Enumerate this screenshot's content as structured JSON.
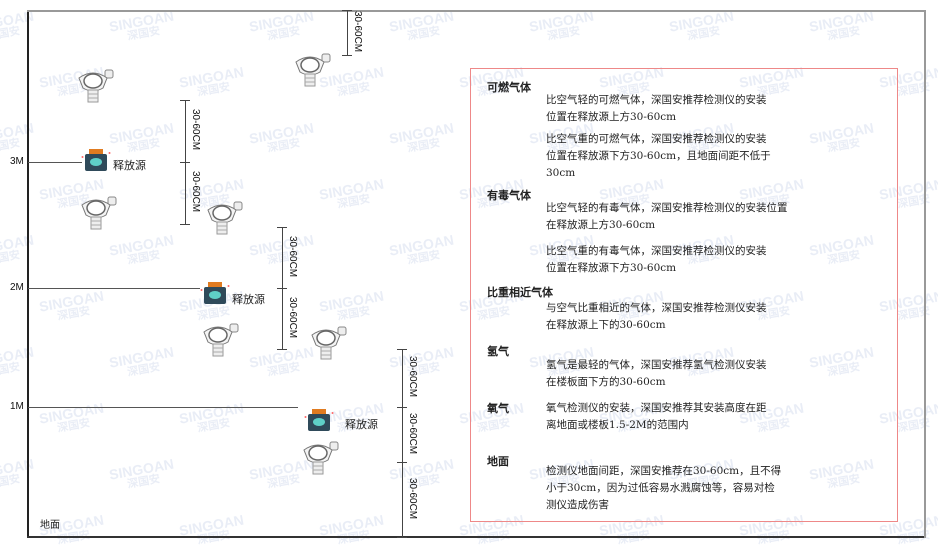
{
  "watermark": {
    "brand": "SINGOAN",
    "cn": "深国安"
  },
  "levels": [
    "3M",
    "2M",
    "1M"
  ],
  "ground_label": "地面",
  "release_source_label": "释放源",
  "dimension_label": "30-60CM",
  "colors": {
    "panel_border": "#ee8888",
    "source_body": "#2f4a5a",
    "source_cap": "#e07b20",
    "source_face": "#5fd0c8"
  },
  "panel": {
    "sections": [
      {
        "title": "可燃气体",
        "paragraphs": [
          [
            "比空气轻的可燃气体，深国安推荐检测仪的安装",
            "位置在释放源上方30-60cm"
          ],
          [
            "比空气重的可燃气体，深国安推荐检测仪的安装",
            "位置在释放源下方30-60cm，且地面间距不低于",
            "30cm"
          ]
        ]
      },
      {
        "title": "有毒气体",
        "paragraphs": [
          [
            "比空气轻的有毒气体，深国安推荐检测仪的安装位置",
            "在释放源上方30-60cm"
          ],
          [
            "比空气重的有毒气体，深国安推荐检测仪的安装",
            "位置在释放源下方30-60cm"
          ]
        ]
      },
      {
        "title": "比重相近气体",
        "paragraphs": [
          [
            "与空气比重相近的气体，深国安推荐检测仪安装",
            "在释放源上下的30-60cm"
          ]
        ]
      },
      {
        "title": "氢气",
        "paragraphs": [
          [
            "氢气是最轻的气体，深国安推荐氢气检测仪安装",
            "在楼板面下方的30-60cm"
          ]
        ]
      },
      {
        "title": "氧气",
        "paragraphs": [
          [
            "氧气检测仪的安装，深国安推荐其安装高度在距",
            "离地面或楼板1.5-2M的范围内"
          ]
        ]
      },
      {
        "title": "地面",
        "paragraphs": [
          [
            "检测仪地面间距，深国安推荐在30-60cm，且不得",
            "小于30cm，因为过低容易水溅腐蚀等，容易对检",
            "测仪造成伤害"
          ]
        ]
      }
    ]
  }
}
